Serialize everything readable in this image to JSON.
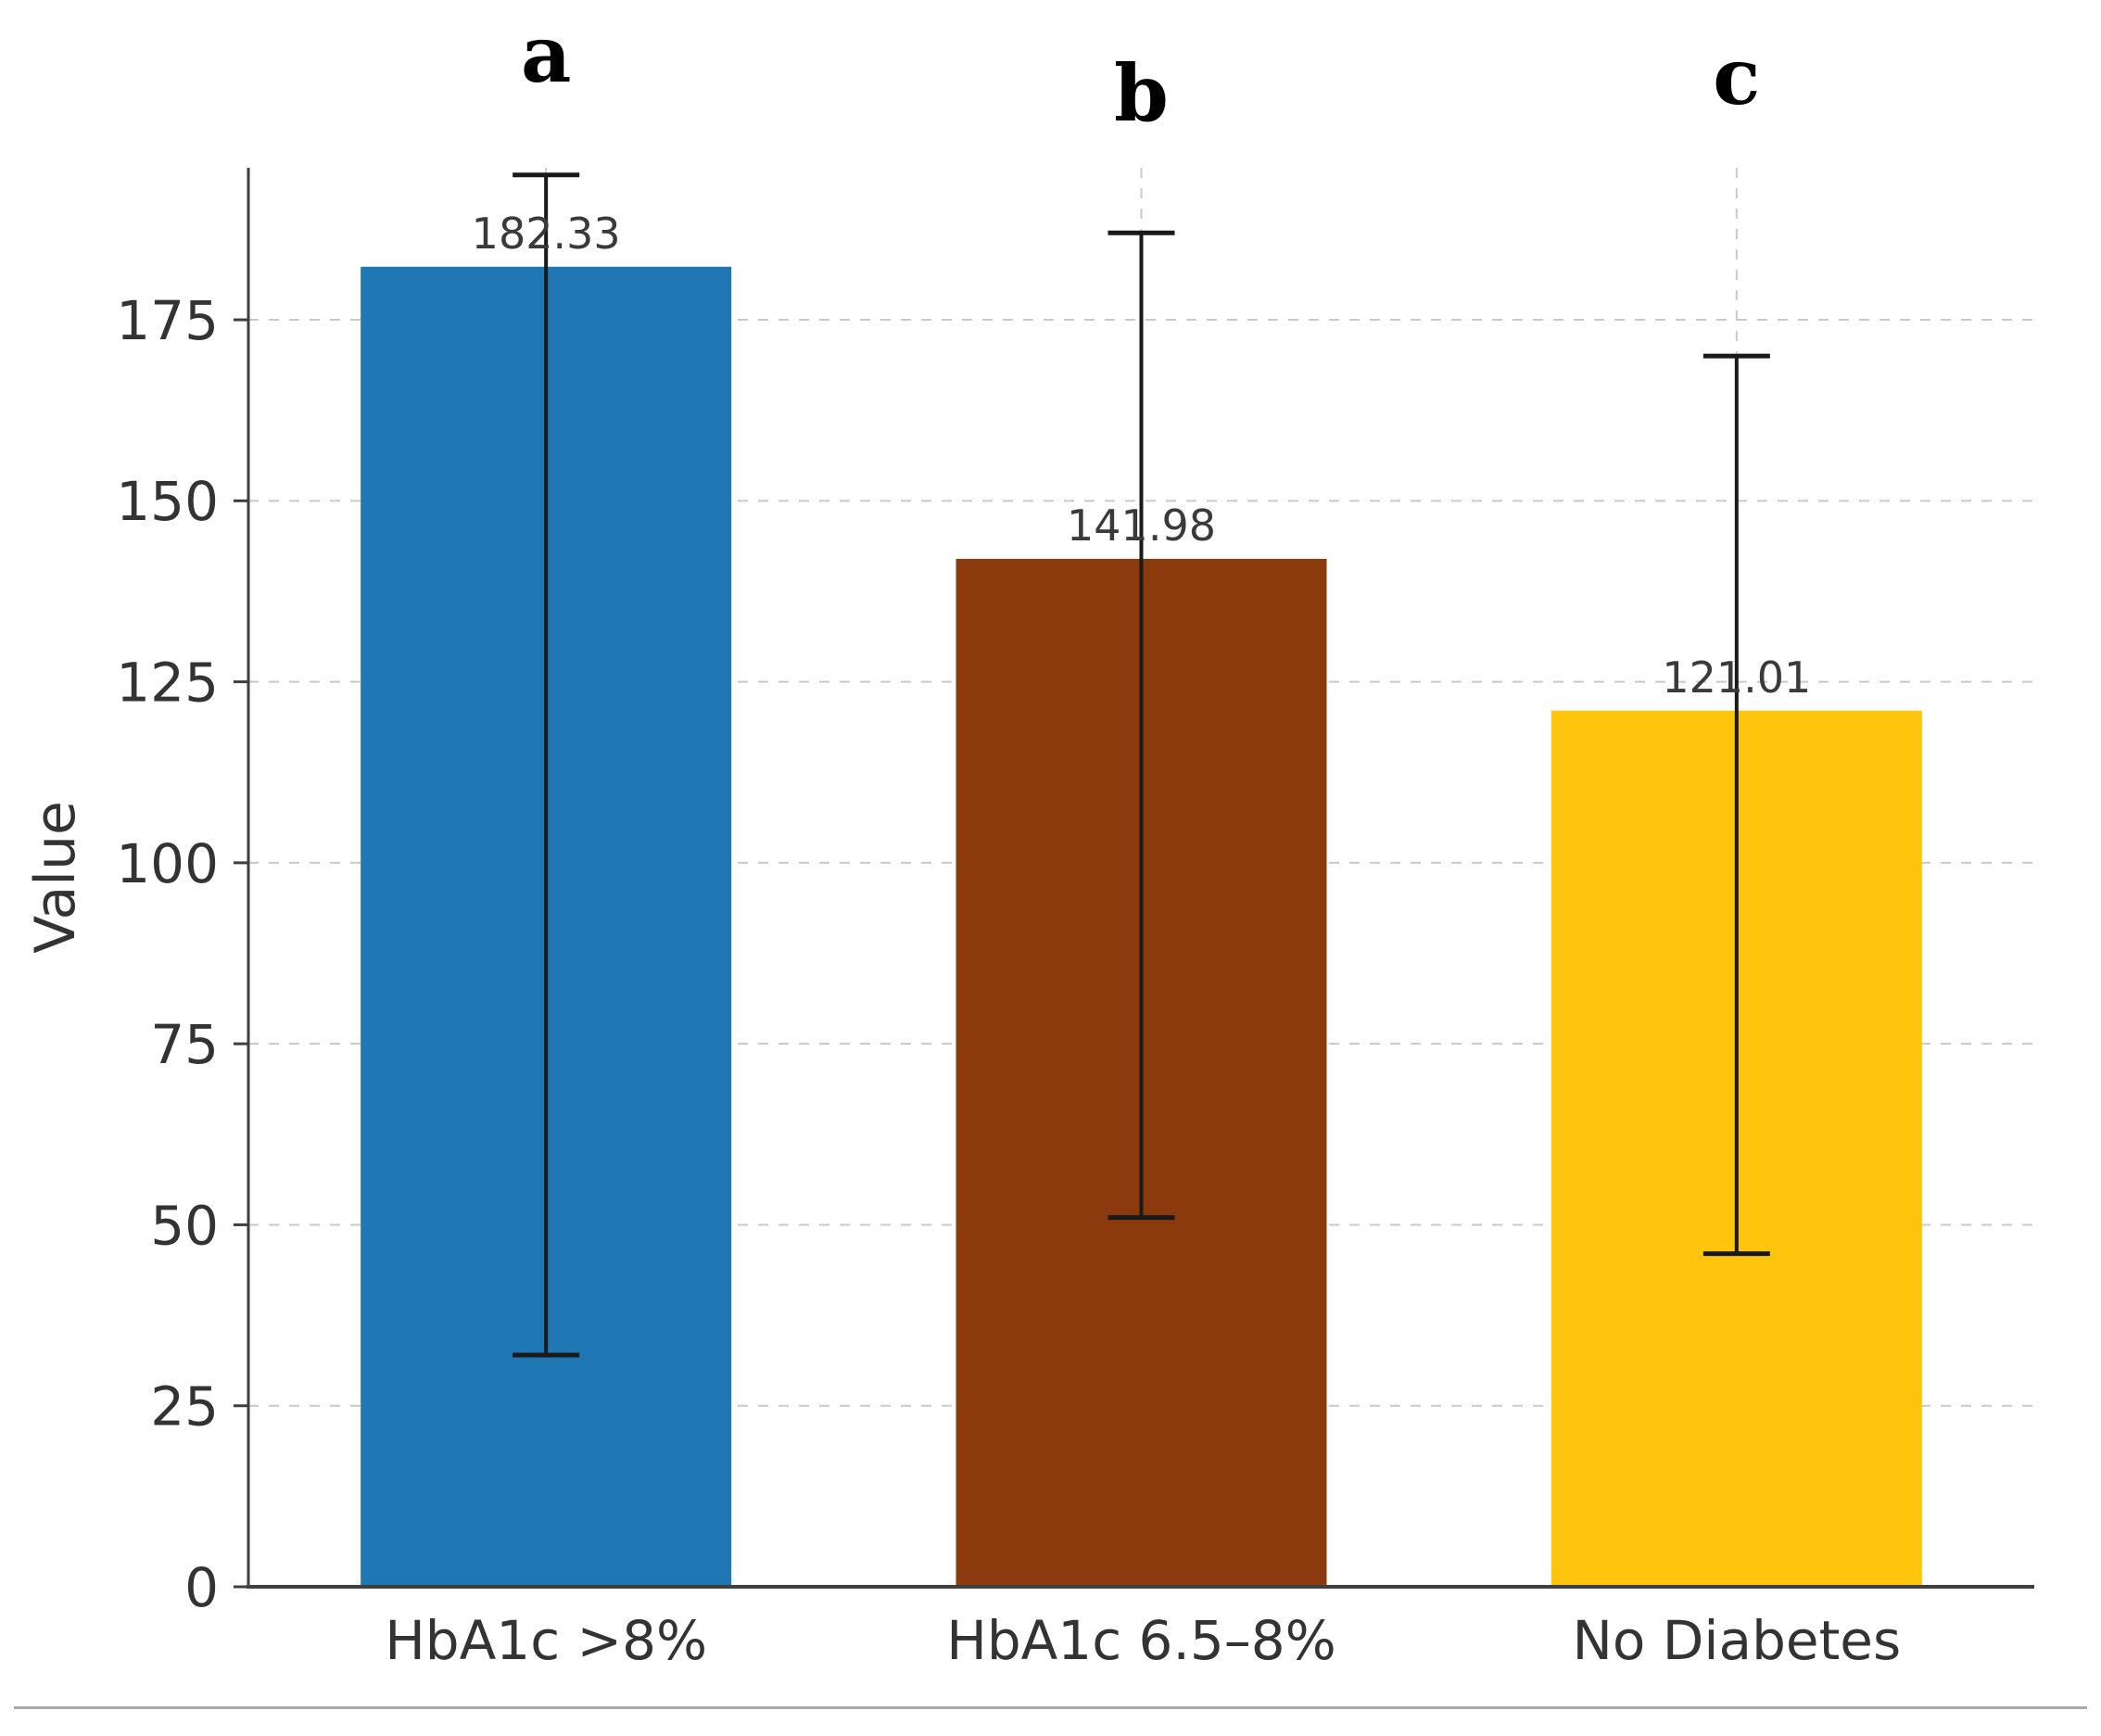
{
  "chart_data": {
    "type": "bar",
    "title": "",
    "xlabel": "",
    "ylabel": "Value",
    "categories": [
      "HbA1c >8%",
      "HbA1c 6.5–8%",
      "No Diabetes"
    ],
    "values": [
      182.33,
      141.98,
      121.01
    ],
    "value_labels": [
      "182.33",
      "141.98",
      "121.01"
    ],
    "bar_letters": [
      "a",
      "b",
      "c"
    ],
    "bar_colors": [
      "#1f77b4",
      "#8b3a0e",
      "#ffc40c"
    ],
    "error_bars": [
      {
        "low": 32,
        "high": 195
      },
      {
        "low": 51,
        "high": 187
      },
      {
        "low": 46,
        "high": 170
      }
    ],
    "yticks": [
      0,
      25,
      50,
      75,
      100,
      125,
      150,
      175
    ],
    "ylim": [
      0,
      196
    ],
    "grid": true,
    "grid_style": "dashed",
    "grid_color": "#c9c9c9",
    "axis_color": "#3f3f3f",
    "tick_label_color": "#333333",
    "value_label_color": "#3a3a3a",
    "error_bar_color": "#1a1a1a",
    "legend": "none"
  }
}
